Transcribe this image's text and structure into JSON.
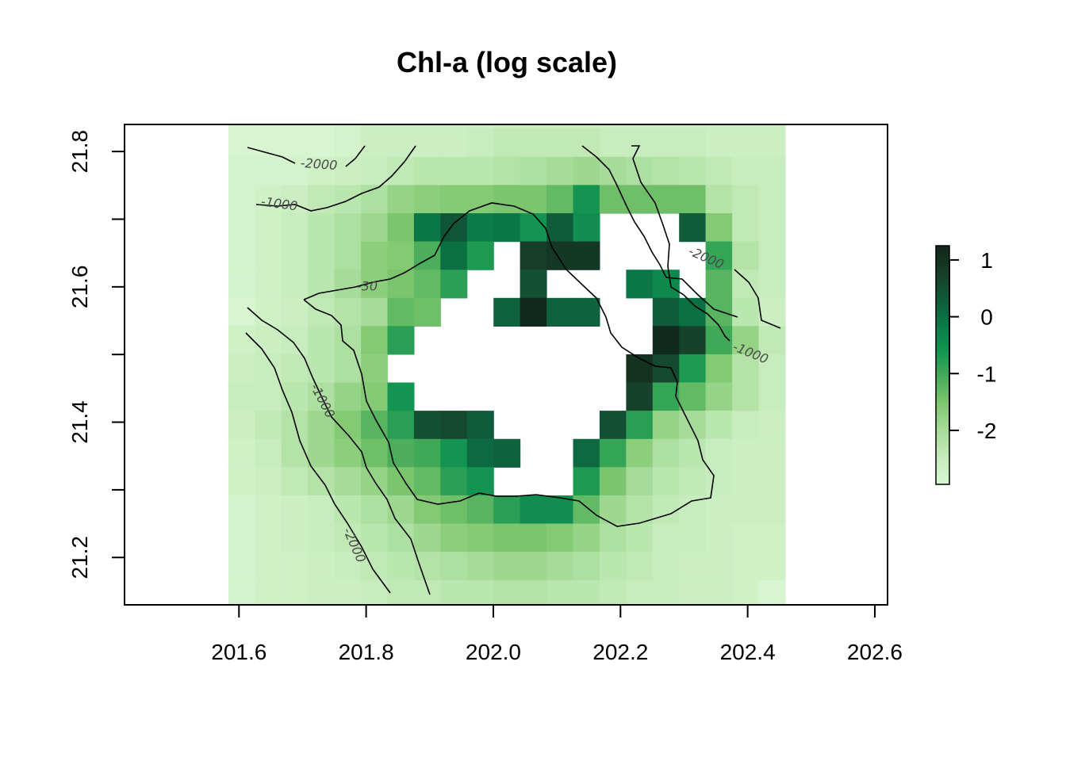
{
  "chart_data": {
    "type": "heatmap",
    "title": "Chl-a (log scale)",
    "xlabel": "",
    "ylabel": "",
    "xlim": [
      201.42,
      202.62
    ],
    "ylim": [
      21.13,
      21.84
    ],
    "x_ticks": [
      "201.6",
      "201.8",
      "202.0",
      "202.2",
      "202.4",
      "202.6"
    ],
    "y_ticks": [
      "21.2",
      "21.4",
      "21.6",
      "21.8"
    ],
    "grid": false,
    "cell_x_start": 201.5833,
    "cell_y_start": 21.125,
    "cell_size": 0.0417,
    "rows": [
      [
        -2.9,
        -2.9,
        -2.9,
        -2.9,
        -2.8,
        -2.6,
        -2.6,
        -2.6,
        -2.6,
        -2.6,
        -2.5,
        -2.5,
        -2.5,
        -2.5,
        -2.6,
        -2.6,
        -2.6,
        -2.6,
        -2.6,
        -2.6,
        -2.6
      ],
      [
        -2.9,
        -2.9,
        -2.9,
        -2.9,
        -2.8,
        -2.6,
        -2.6,
        -2.6,
        -2.6,
        -2.5,
        -2.4,
        -2.4,
        -2.4,
        -2.4,
        -2.5,
        -2.5,
        -2.5,
        -2.5,
        -2.6,
        -2.6,
        -2.6
      ],
      [
        -2.8,
        -2.8,
        -2.8,
        -2.7,
        -2.6,
        -2.5,
        -2.4,
        -2.3,
        -2.3,
        -2.3,
        -2.2,
        -2.1,
        -2.0,
        -1.9,
        -2.0,
        -2.1,
        -2.2,
        -2.3,
        -2.4,
        -2.5,
        -2.5
      ],
      [
        -2.8,
        -2.7,
        -2.6,
        -2.4,
        -2.3,
        -2.1,
        -1.8,
        -1.7,
        -1.6,
        -1.6,
        -1.5,
        -1.5,
        -1.3,
        -0.6,
        -1.4,
        -1.4,
        -1.4,
        -1.4,
        -2.2,
        -2.4,
        -2.5
      ],
      [
        -2.8,
        -2.7,
        -2.5,
        -2.3,
        -2.1,
        -1.9,
        -1.5,
        -0.1,
        0.4,
        -0.2,
        -0.1,
        -0.6,
        0.3,
        -0.5,
        null,
        null,
        null,
        0.3,
        -1.6,
        -2.4,
        -2.5
      ],
      [
        -2.8,
        -2.7,
        -2.5,
        -2.3,
        -2.1,
        -1.7,
        -1.6,
        -1.1,
        0.0,
        -0.7,
        null,
        0.8,
        0.9,
        0.9,
        null,
        null,
        null,
        null,
        -0.9,
        -2.2,
        -2.5
      ],
      [
        -2.8,
        -2.7,
        -2.5,
        -2.3,
        -2.0,
        -1.7,
        -1.5,
        -1.3,
        -0.8,
        null,
        null,
        0.5,
        null,
        null,
        null,
        -0.1,
        -0.4,
        null,
        -1.2,
        -2.4,
        -2.5
      ],
      [
        -2.9,
        -2.7,
        -2.6,
        -2.4,
        -2.2,
        -2.0,
        -1.3,
        -1.4,
        null,
        null,
        0.2,
        1.2,
        0.2,
        0.2,
        null,
        null,
        0.3,
        0.0,
        -1.2,
        -2.3,
        -2.6
      ],
      [
        -2.7,
        -2.6,
        -2.5,
        -2.3,
        -2.1,
        -1.6,
        -0.8,
        null,
        null,
        null,
        null,
        null,
        null,
        null,
        null,
        null,
        1.2,
        0.7,
        -1.0,
        -1.8,
        -2.4
      ],
      [
        -2.6,
        -2.5,
        -2.4,
        -2.3,
        -2.1,
        -1.7,
        null,
        null,
        null,
        null,
        null,
        null,
        null,
        null,
        null,
        1.0,
        0.6,
        -0.7,
        -1.6,
        -2.2,
        -2.5
      ],
      [
        -2.5,
        -2.5,
        -2.3,
        -2.1,
        -1.8,
        -1.6,
        -0.6,
        null,
        null,
        null,
        null,
        null,
        null,
        null,
        null,
        0.7,
        -0.9,
        -1.3,
        -1.8,
        -2.2,
        -2.5
      ],
      [
        -2.6,
        -2.4,
        -2.2,
        -1.9,
        -1.6,
        -1.2,
        -0.8,
        0.5,
        0.6,
        0.3,
        null,
        null,
        null,
        null,
        0.5,
        -0.8,
        -1.8,
        -2.0,
        -2.3,
        -2.5,
        -2.6
      ],
      [
        -2.7,
        -2.5,
        -2.2,
        -1.9,
        -1.7,
        -1.4,
        -1.1,
        -1.0,
        -0.6,
        0.1,
        0.2,
        null,
        null,
        0.1,
        -0.9,
        -1.7,
        -2.1,
        -2.3,
        -2.5,
        -2.6,
        -2.6
      ],
      [
        -2.7,
        -2.6,
        -2.4,
        -2.2,
        -2.0,
        -1.8,
        -1.5,
        -1.3,
        -0.8,
        -0.6,
        null,
        null,
        null,
        -0.7,
        -1.5,
        -2.0,
        -2.3,
        -2.4,
        -2.5,
        -2.6,
        -2.6
      ],
      [
        -2.8,
        -2.7,
        -2.6,
        -2.5,
        -2.3,
        -2.1,
        -1.9,
        -1.6,
        -1.4,
        -1.2,
        -0.8,
        -0.5,
        -0.5,
        -1.3,
        -1.9,
        -2.2,
        -2.4,
        -2.5,
        -2.6,
        -2.6,
        -2.6
      ],
      [
        -2.8,
        -2.7,
        -2.6,
        -2.5,
        -2.4,
        -2.3,
        -2.1,
        -1.9,
        -1.7,
        -1.6,
        -1.5,
        -1.5,
        -1.6,
        -1.8,
        -2.1,
        -2.3,
        -2.5,
        -2.5,
        -2.6,
        -2.7,
        -2.7
      ],
      [
        -2.8,
        -2.7,
        -2.7,
        -2.6,
        -2.5,
        -2.4,
        -2.3,
        -2.2,
        -2.1,
        -2.0,
        -1.9,
        -1.9,
        -2.0,
        -2.1,
        -2.3,
        -2.4,
        -2.5,
        -2.6,
        -2.6,
        -2.7,
        -2.7
      ],
      [
        -2.8,
        -2.7,
        -2.7,
        -2.6,
        -2.6,
        -2.5,
        -2.4,
        -2.4,
        -2.3,
        -2.3,
        -2.2,
        -2.2,
        -2.3,
        -2.3,
        -2.4,
        -2.5,
        -2.5,
        -2.6,
        -2.6,
        -2.7,
        -2.9
      ]
    ],
    "colorbar": {
      "min": -2.95,
      "max": 1.25,
      "ticks": [
        "1",
        "0",
        "-1",
        "-2"
      ],
      "colors": [
        "#d8f6d2",
        "#c6ecbc",
        "#a8dc9a",
        "#80c870",
        "#4aad5a",
        "#139550",
        "#0a7a4a",
        "#0f5a3a",
        "#173d28",
        "#10261a"
      ]
    },
    "contours": [
      {
        "label": "-30"
      },
      {
        "label": "-1000"
      },
      {
        "label": "-1000"
      },
      {
        "label": "-1000"
      },
      {
        "label": "-2000"
      },
      {
        "label": "-2000"
      },
      {
        "label": "-2000"
      }
    ]
  }
}
